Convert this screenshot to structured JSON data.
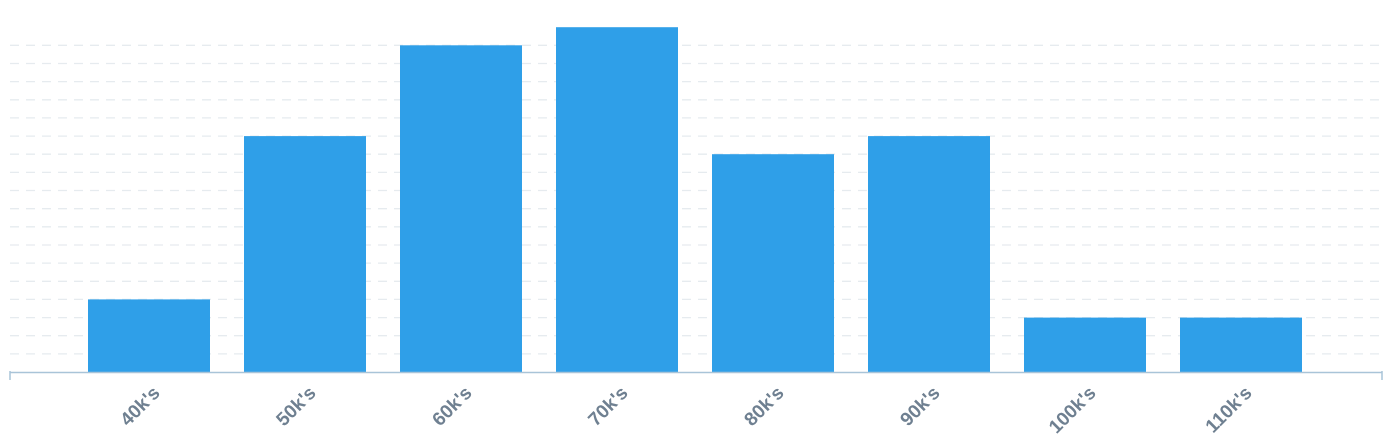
{
  "chart_data": {
    "type": "bar",
    "categories": [
      "40k's",
      "50k's",
      "60k's",
      "70k's",
      "80k's",
      "90k's",
      "100k's",
      "110k's"
    ],
    "values": [
      4,
      13,
      18,
      19,
      12,
      13,
      3,
      3
    ],
    "ylim": [
      0,
      19
    ],
    "grid": true,
    "legend": "none",
    "title": "",
    "xlabel": "",
    "ylabel": "",
    "colors": {
      "bar": "#2f9fe8"
    }
  }
}
